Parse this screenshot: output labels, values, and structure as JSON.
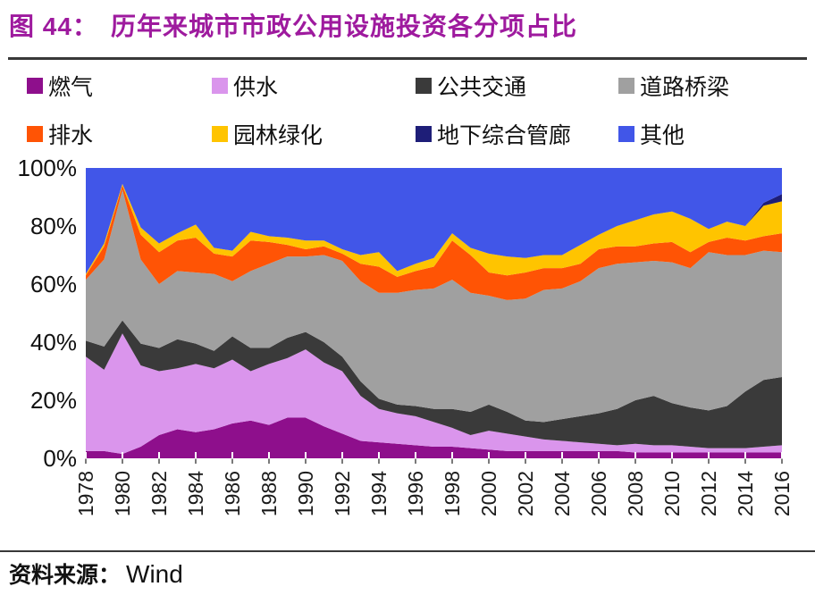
{
  "title": {
    "label": "图 44：",
    "text": "历年来城市市政公用设施投资各分项占比",
    "color": "#9E1A9E"
  },
  "source": {
    "label": "资料来源：",
    "value": "Wind"
  },
  "chart_data": {
    "type": "area",
    "stacked": true,
    "unit": "%",
    "grid": false,
    "legend_position": "top",
    "ylim": [
      0,
      100
    ],
    "y_axis_tick_labels": [
      "100%",
      "80%",
      "60%",
      "40%",
      "20%",
      "0%"
    ],
    "x": [
      1978,
      1979,
      1980,
      1981,
      1982,
      1983,
      1984,
      1985,
      1986,
      1987,
      1988,
      1989,
      1990,
      1991,
      1992,
      1993,
      1994,
      1995,
      1996,
      1997,
      1998,
      1999,
      2000,
      2001,
      2002,
      2003,
      2004,
      2005,
      2006,
      2007,
      2008,
      2009,
      2010,
      2011,
      2012,
      2013,
      2014,
      2015,
      2016
    ],
    "x_axis_tick_labels": [
      "1978",
      "1980",
      "1982",
      "1984",
      "1986",
      "1988",
      "1990",
      "1992",
      "1994",
      "1996",
      "1998",
      "2000",
      "2002",
      "2004",
      "2006",
      "2008",
      "2010",
      "2012",
      "2014",
      "2016"
    ],
    "series": [
      {
        "name": "燃气",
        "key": "gas",
        "color": "#8E0F8C",
        "values": [
          2.5,
          2.5,
          1.5,
          4,
          8,
          10,
          9,
          10,
          12,
          13,
          11.5,
          14,
          14,
          11,
          8.5,
          6,
          5.5,
          5,
          4.5,
          4,
          4,
          3.5,
          3,
          2.5,
          2.5,
          2.5,
          2.5,
          2.5,
          2.5,
          2.5,
          2,
          2,
          2,
          2,
          2,
          2,
          2,
          2,
          2
        ]
      },
      {
        "name": "供水",
        "key": "water-supply",
        "color": "#DA95EC",
        "values": [
          32.5,
          28,
          41.5,
          28,
          22,
          21,
          23.5,
          21,
          22,
          17,
          21,
          20.5,
          23.5,
          22,
          21.5,
          15.5,
          11.5,
          10.5,
          10,
          8.5,
          6.5,
          4.5,
          6.5,
          6,
          5,
          4,
          3.5,
          3,
          2.5,
          2,
          3,
          2.5,
          2.5,
          2,
          1.5,
          1.5,
          1.5,
          2,
          2.5
        ]
      },
      {
        "name": "公共交通",
        "key": "public-transport",
        "color": "#3A3A3A",
        "values": [
          5.5,
          8,
          4.5,
          7.5,
          8,
          10,
          7,
          6,
          8,
          8,
          5.5,
          7,
          6,
          7,
          5,
          5,
          3.5,
          3,
          3.5,
          4.5,
          6.5,
          8,
          9,
          7.5,
          5.5,
          6,
          7.5,
          9,
          10.5,
          12.5,
          15,
          17,
          14.5,
          13.5,
          13,
          14.5,
          19.5,
          23,
          23.5
        ]
      },
      {
        "name": "道路桥梁",
        "key": "roads-bridges",
        "color": "#A0A0A0",
        "values": [
          21,
          30,
          45,
          29,
          22,
          23.5,
          24.5,
          26.5,
          19,
          26.5,
          29,
          28,
          26,
          30,
          33,
          34.5,
          36.5,
          38.5,
          40,
          41.5,
          44.5,
          41,
          37.5,
          38.5,
          42,
          45.5,
          45,
          46.5,
          50,
          50,
          47.5,
          46.5,
          48.5,
          48,
          54.5,
          52,
          47,
          44.5,
          43
        ]
      },
      {
        "name": "排水",
        "key": "drainage",
        "color": "#FF5405",
        "values": [
          1.5,
          4.5,
          1.5,
          8.5,
          11,
          10.5,
          12,
          7,
          8.5,
          10.5,
          7.5,
          4,
          2.5,
          3,
          2.5,
          6,
          9,
          5.5,
          6.5,
          7.5,
          13.5,
          13,
          8,
          8.5,
          9,
          7.5,
          7,
          6,
          6.5,
          6,
          5.5,
          6,
          7,
          5.5,
          3.5,
          6,
          5,
          5,
          6.5
        ]
      },
      {
        "name": "园林绿化",
        "key": "landscaping",
        "color": "#FFC400",
        "values": [
          0.5,
          1,
          0.5,
          2.5,
          3,
          2.5,
          4.5,
          2,
          2,
          3,
          2,
          2.5,
          3,
          2,
          1.5,
          3,
          5,
          2,
          2.5,
          3,
          2.5,
          2.5,
          6.5,
          6.5,
          5,
          4.5,
          4.5,
          6.5,
          5,
          7,
          9,
          10,
          10.5,
          11.5,
          4.5,
          5.5,
          5,
          10.5,
          11
        ]
      },
      {
        "name": "地下综合管廊",
        "key": "utility-tunnel",
        "color": "#1E1E78",
        "values": [
          0,
          0,
          0,
          0,
          0,
          0,
          0,
          0,
          0,
          0,
          0,
          0,
          0,
          0,
          0,
          0,
          0,
          0,
          0,
          0,
          0,
          0,
          0,
          0,
          0,
          0,
          0,
          0,
          0,
          0,
          0,
          0,
          0,
          0,
          0,
          0,
          0,
          1,
          2.5
        ]
      },
      {
        "name": "其他",
        "key": "other",
        "color": "#4156E8",
        "values": [
          36.5,
          26,
          5.5,
          20.5,
          26,
          22.5,
          19.5,
          27.5,
          28.5,
          22,
          23.5,
          24,
          25,
          25,
          28,
          30,
          29,
          35.5,
          33,
          31,
          22.5,
          27.5,
          29.5,
          30.5,
          31,
          30,
          30,
          26.5,
          23,
          20,
          18,
          16,
          15,
          17.5,
          21,
          18.5,
          20,
          12,
          9
        ]
      }
    ]
  }
}
